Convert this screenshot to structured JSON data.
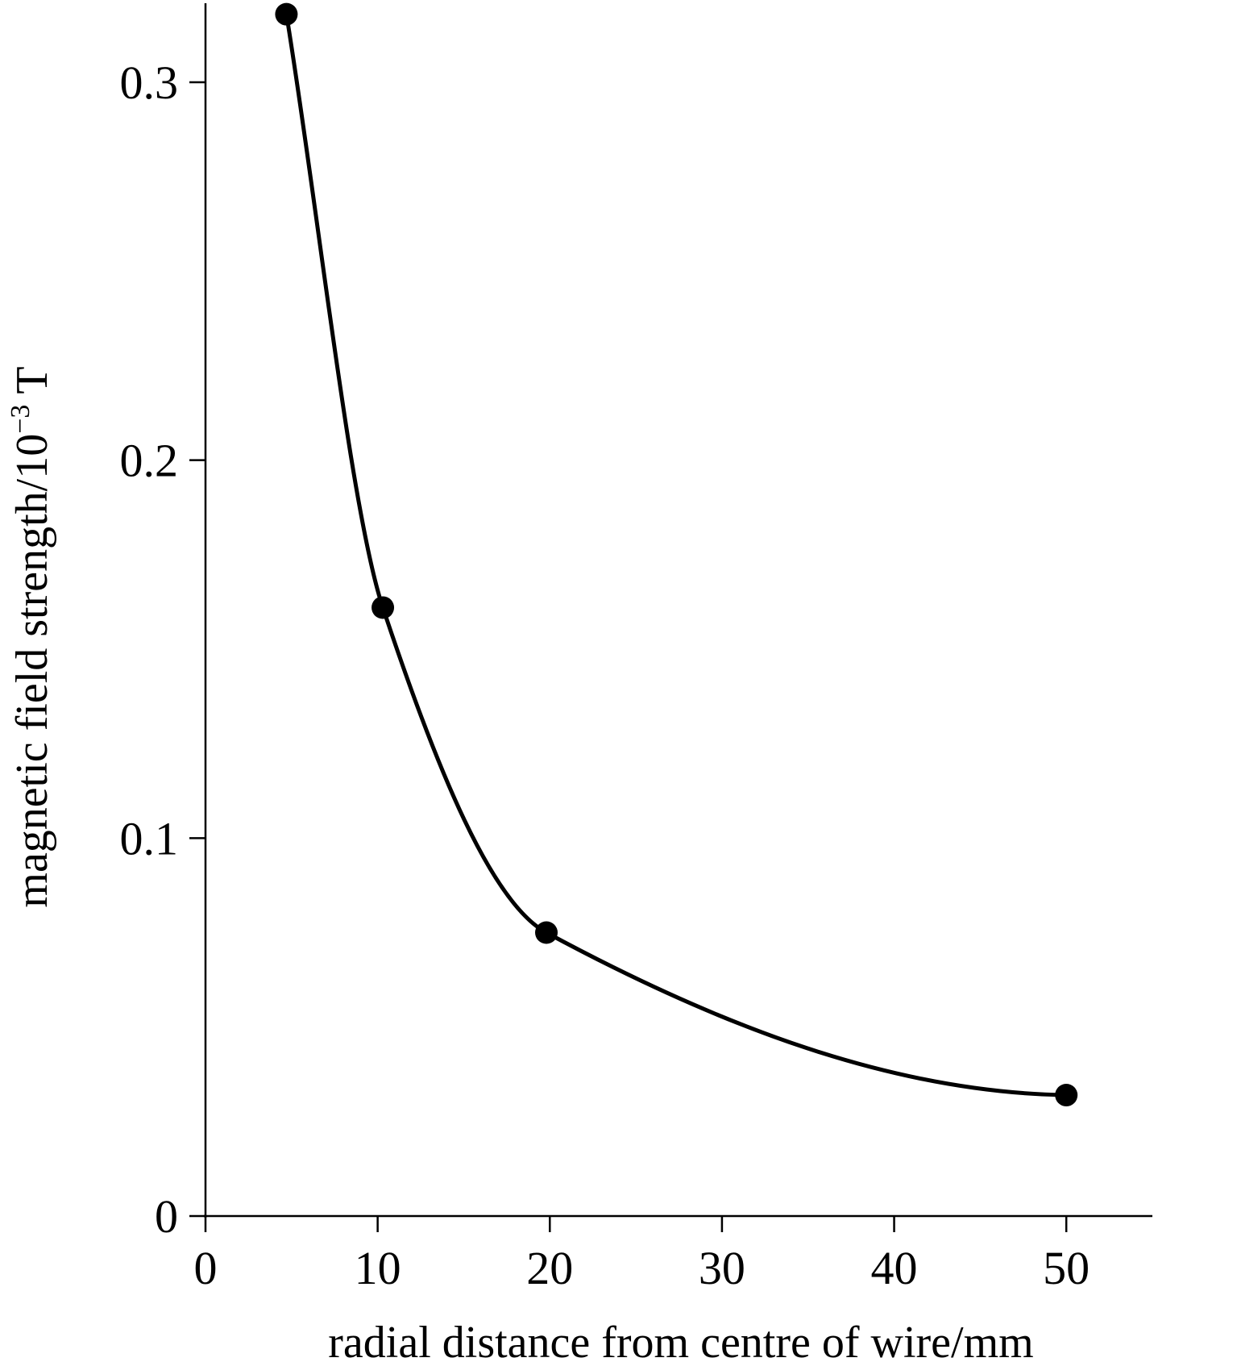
{
  "chart_data": {
    "type": "line",
    "title": "",
    "xlabel": "radial distance from centre of wire/mm",
    "ylabel": {
      "prefix": "magnetic field strength/10",
      "exponent": "−3",
      "suffix": " T"
    },
    "xlim": [
      0,
      55
    ],
    "ylim": [
      0,
      0.32
    ],
    "x_ticks": [
      0,
      10,
      20,
      30,
      40,
      50
    ],
    "x_tick_labels": [
      "0",
      "10",
      "20",
      "30",
      "40",
      "50"
    ],
    "y_ticks": [
      0,
      0.1,
      0.2,
      0.3
    ],
    "y_tick_labels": [
      "0",
      "0.1",
      "0.2",
      "0.3"
    ],
    "grid": false,
    "legend": "none",
    "series": [
      {
        "marker": "filled-circle",
        "line": "smooth-curve",
        "color": "#000000",
        "x": [
          4.7,
          10.3,
          19.8,
          50
        ],
        "y": [
          0.318,
          0.161,
          0.075,
          0.032
        ]
      }
    ]
  }
}
